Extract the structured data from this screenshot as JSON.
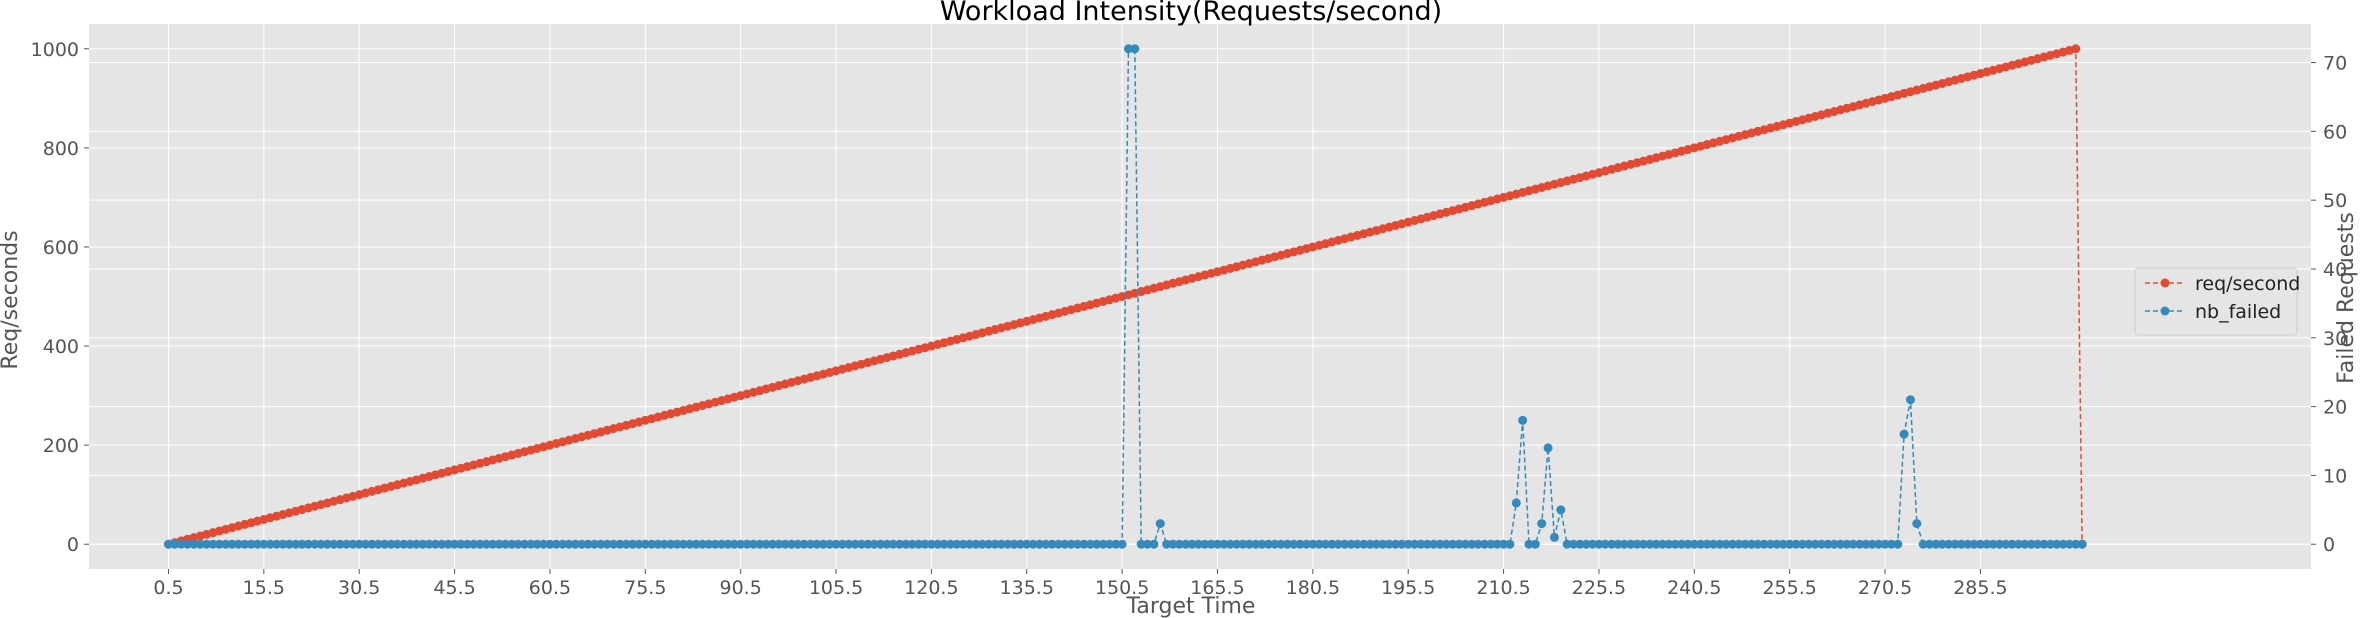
{
  "chart_data": {
    "type": "line",
    "title": "Workload Intensity(Requests/second)",
    "xlabel": "Target Time",
    "ylabel": "Req/seconds",
    "y2label": "Failed Requests",
    "xlim": [
      -12,
      337.5
    ],
    "ylim": [
      -50,
      1050
    ],
    "y2lim": [
      -3.6,
      75.6
    ],
    "x_ticks": [
      "0.5",
      "15.5",
      "30.5",
      "45.5",
      "60.5",
      "75.5",
      "90.5",
      "105.5",
      "120.5",
      "135.5",
      "150.5",
      "165.5",
      "180.5",
      "195.5",
      "210.5",
      "225.5",
      "240.5",
      "255.5",
      "270.5",
      "285.5"
    ],
    "y_ticks": [
      0,
      200,
      400,
      600,
      800,
      1000
    ],
    "y2_ticks": [
      0,
      10,
      20,
      30,
      40,
      50,
      60,
      70
    ],
    "grid": true,
    "legend_position": "right",
    "x_start": 0.5,
    "x_step": 1,
    "series": [
      {
        "name": "req/second",
        "axis": "left",
        "color": "#E24A33",
        "style": "dashed",
        "marker": "circle",
        "description": "Linear ramp: 0 at x=0.5, rising 5 req/s per 1.5 time units to ~1000 at x=300.5, then dropping to 0 at the final point",
        "ramp_start": 0,
        "ramp_end": 1000,
        "ramp_x_end": 300.5,
        "final_value": 0,
        "final_x": 301.5
      },
      {
        "name": "nb_failed",
        "axis": "right",
        "color": "#348ABD",
        "style": "dashed",
        "marker": "circle",
        "baseline": 0,
        "x_end": 301.5,
        "spikes": [
          {
            "x": 151.5,
            "y": 72
          },
          {
            "x": 152.5,
            "y": 72
          },
          {
            "x": 156.5,
            "y": 3
          },
          {
            "x": 212.5,
            "y": 6
          },
          {
            "x": 213.5,
            "y": 18
          },
          {
            "x": 216.5,
            "y": 3
          },
          {
            "x": 217.5,
            "y": 14
          },
          {
            "x": 218.5,
            "y": 1
          },
          {
            "x": 219.5,
            "y": 5
          },
          {
            "x": 273.5,
            "y": 16
          },
          {
            "x": 274.5,
            "y": 21
          },
          {
            "x": 275.5,
            "y": 3
          }
        ]
      }
    ]
  }
}
